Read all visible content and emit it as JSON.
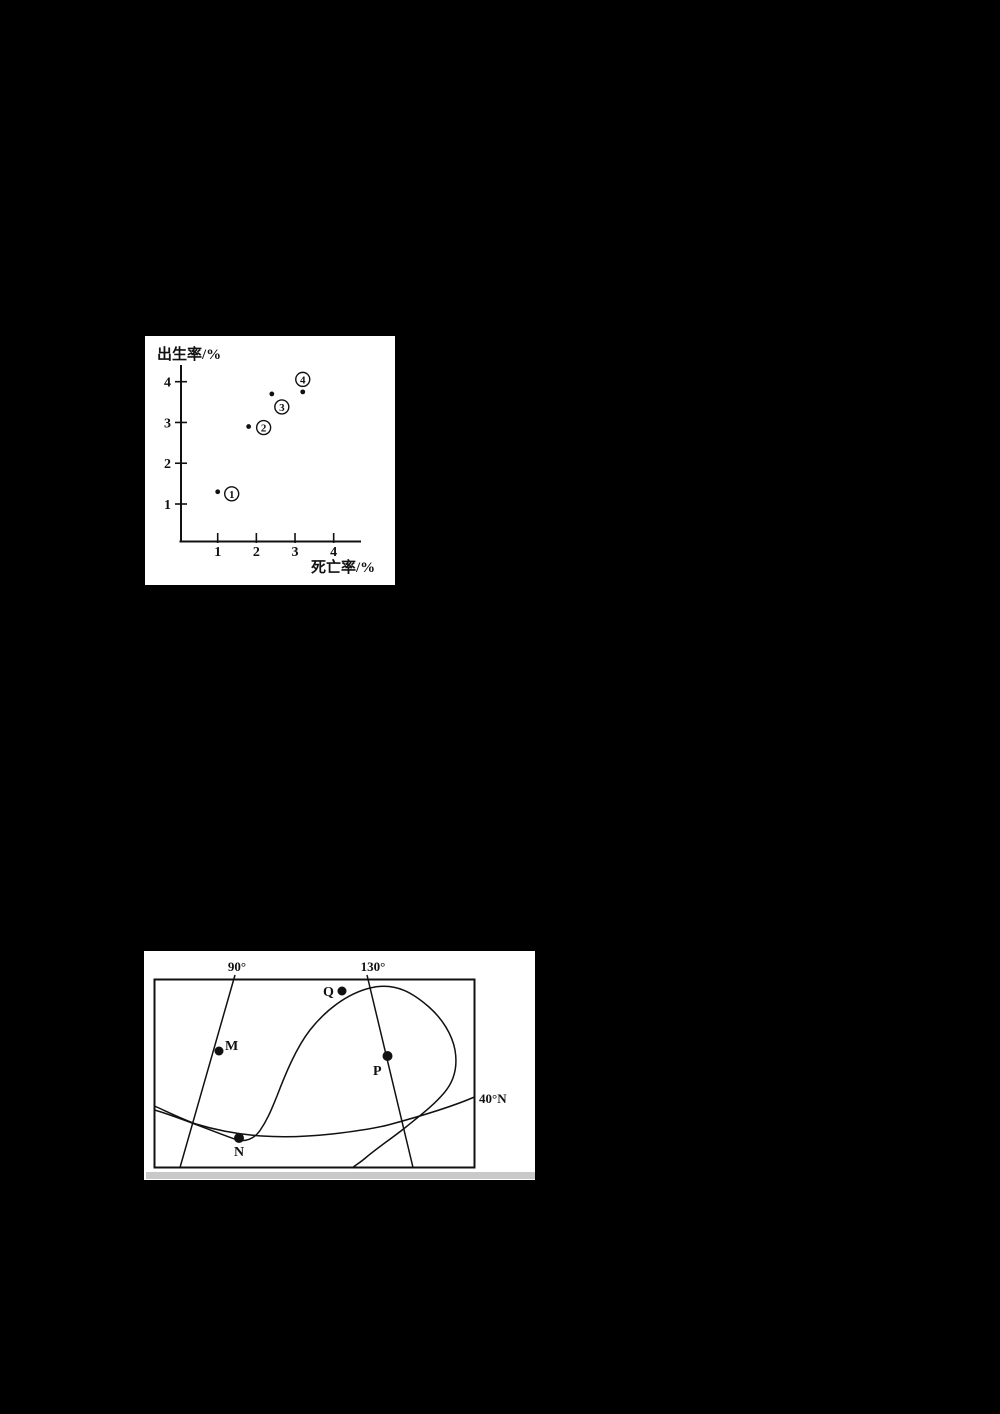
{
  "page": {
    "background_color": "#000000",
    "panel_color": "#ffffff",
    "ink_color": "#111111"
  },
  "chart_data": {
    "type": "scatter",
    "title": "",
    "xlabel": "死亡率/%",
    "ylabel": "出生率/%",
    "x_ticks": [
      "1",
      "2",
      "3",
      "4"
    ],
    "y_ticks": [
      "1",
      "2",
      "3",
      "4"
    ],
    "xlim": [
      0,
      4.6
    ],
    "ylim": [
      0,
      4.4
    ],
    "grid": false,
    "legend": false,
    "points": [
      {
        "digit": "1",
        "circled": "①",
        "x": 1.0,
        "y": 1.3
      },
      {
        "digit": "2",
        "circled": "②",
        "x": 1.8,
        "y": 2.9
      },
      {
        "digit": "3",
        "circled": "③",
        "x": 2.4,
        "y": 3.7
      },
      {
        "digit": "4",
        "circled": "④",
        "x": 3.2,
        "y": 3.75
      }
    ]
  },
  "map": {
    "left_meridian_label": "90°",
    "right_meridian_label": "130°",
    "parallel_label": "40°N",
    "points": [
      {
        "label": "M"
      },
      {
        "label": "N"
      },
      {
        "label": "P"
      },
      {
        "label": "Q"
      }
    ]
  }
}
